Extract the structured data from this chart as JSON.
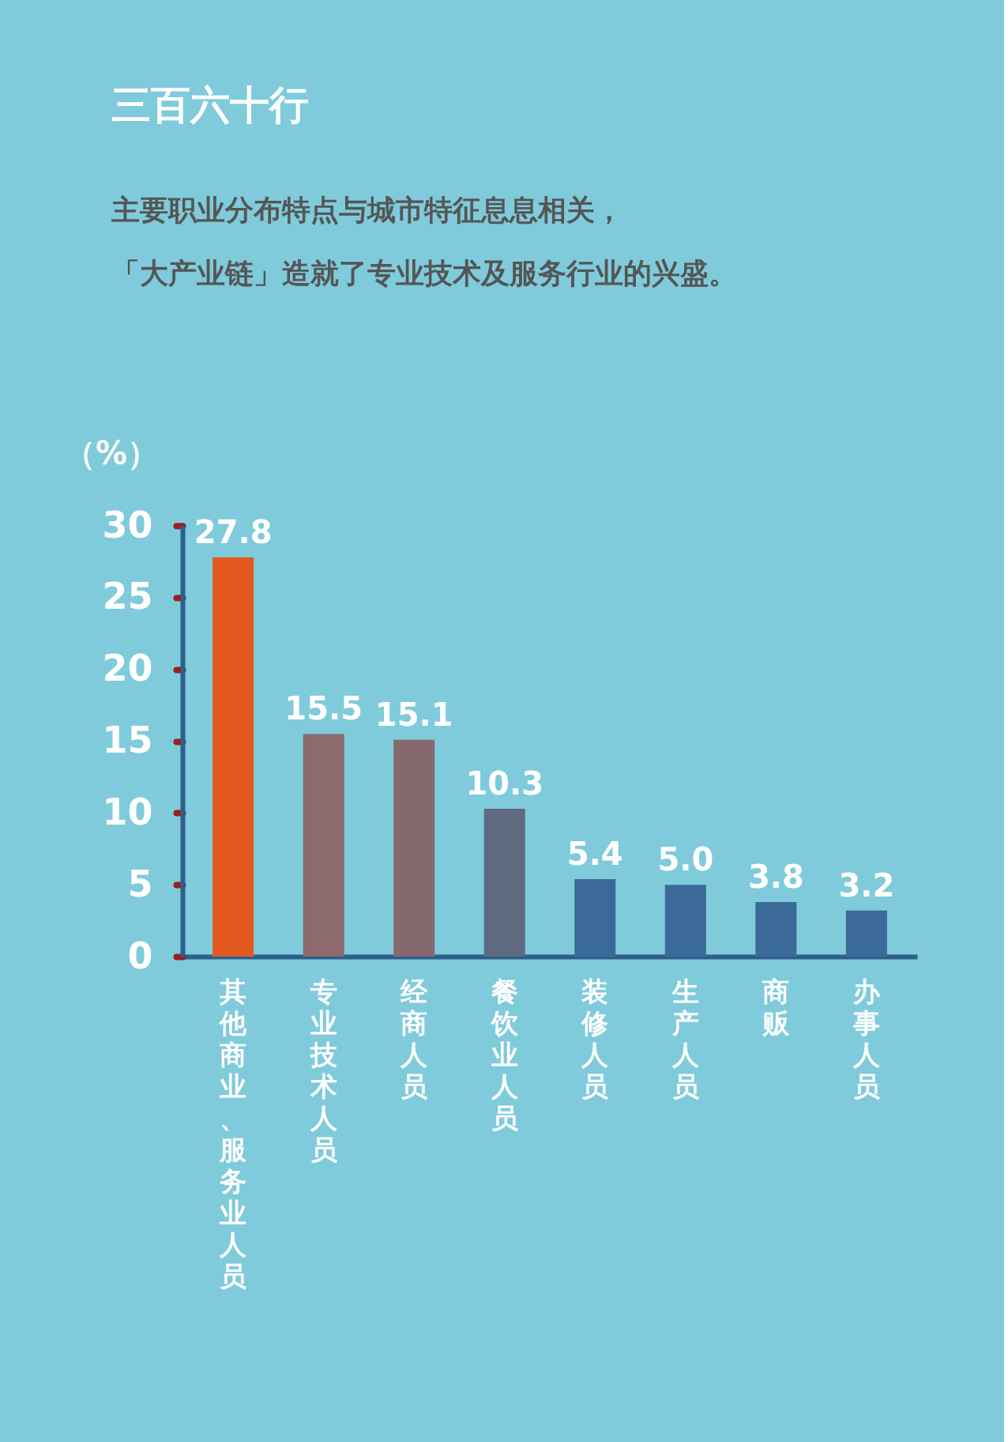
{
  "chart_data": {
    "type": "bar",
    "title": "三百六十行",
    "subtitle": "主要职业分布特点与城市特征息息相关，",
    "annotations": [
      "「大产业链」造就了专业技术及服务行业的兴盛。"
    ],
    "ylabel": "（%）",
    "categories": [
      "其他商业、服务业人员",
      "专业技术人员",
      "经商人员",
      "餐饮业人员",
      "装修人员",
      "生产人员",
      "商贩",
      "办事人员"
    ],
    "values": [
      27.8,
      15.5,
      15.1,
      10.3,
      5.4,
      5.0,
      3.8,
      3.2
    ],
    "value_labels": [
      "27.8",
      "15.5",
      "15.1",
      "10.3",
      "5.4",
      "5.0",
      "3.8",
      "3.2"
    ],
    "colors": [
      "#e2591f",
      "#8c6a6e",
      "#86686f",
      "#5f6a80",
      "#3b6a98",
      "#3b6a98",
      "#3b6a98",
      "#3b6a98"
    ],
    "ylim": [
      0,
      30
    ],
    "yticks": [
      0,
      5,
      10,
      15,
      20,
      25,
      30
    ],
    "grid": false
  }
}
